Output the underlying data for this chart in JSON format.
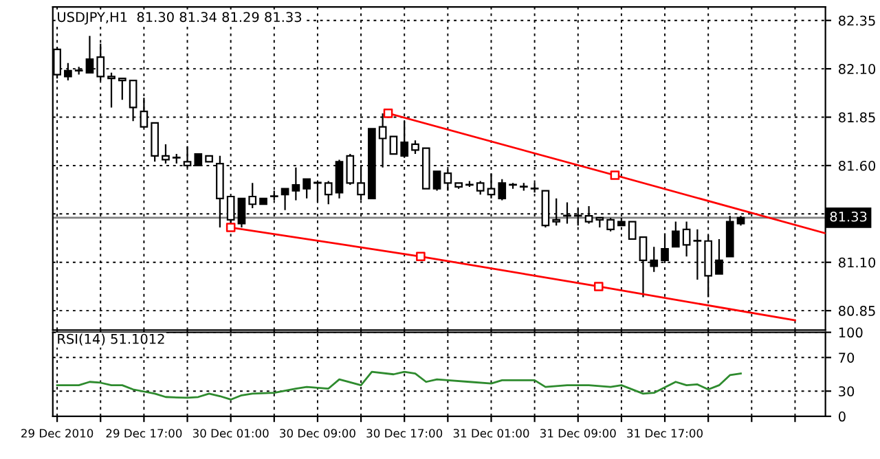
{
  "chart_data": [
    {
      "type": "candlestick",
      "title": "USDJPY,H1  81.30 81.34 81.29 81.33",
      "x": [
        "2010-12-29T09:00",
        "2010-12-29T10:00",
        "2010-12-29T11:00",
        "2010-12-29T12:00",
        "2010-12-29T13:00",
        "2010-12-29T14:00",
        "2010-12-29T15:00",
        "2010-12-29T16:00",
        "2010-12-29T17:00",
        "2010-12-29T18:00",
        "2010-12-29T19:00",
        "2010-12-29T20:00",
        "2010-12-29T21:00",
        "2010-12-29T22:00",
        "2010-12-29T23:00",
        "2010-12-30T00:00",
        "2010-12-30T01:00",
        "2010-12-30T02:00",
        "2010-12-30T03:00",
        "2010-12-30T04:00",
        "2010-12-30T05:00",
        "2010-12-30T06:00",
        "2010-12-30T07:00",
        "2010-12-30T08:00",
        "2010-12-30T09:00",
        "2010-12-30T10:00",
        "2010-12-30T11:00",
        "2010-12-30T12:00",
        "2010-12-30T13:00",
        "2010-12-30T14:00",
        "2010-12-30T15:00",
        "2010-12-30T16:00",
        "2010-12-30T17:00",
        "2010-12-30T18:00",
        "2010-12-30T19:00",
        "2010-12-30T20:00",
        "2010-12-30T21:00",
        "2010-12-30T22:00",
        "2010-12-30T23:00",
        "2010-12-31T00:00",
        "2010-12-31T01:00",
        "2010-12-31T02:00",
        "2010-12-31T03:00",
        "2010-12-31T04:00",
        "2010-12-31T05:00",
        "2010-12-31T06:00",
        "2010-12-31T07:00",
        "2010-12-31T08:00",
        "2010-12-31T09:00",
        "2010-12-31T10:00",
        "2010-12-31T11:00",
        "2010-12-31T12:00",
        "2010-12-31T13:00",
        "2010-12-31T14:00",
        "2010-12-31T15:00",
        "2010-12-31T16:00",
        "2010-12-31T17:00",
        "2010-12-31T18:00",
        "2010-12-31T19:00",
        "2010-12-31T20:00",
        "2010-12-31T21:00",
        "2010-12-31T22:00",
        "2010-12-31T23:00",
        "2011-01-01T00:00"
      ],
      "ohlc": [
        [
          82.2,
          82.21,
          82.05,
          82.07
        ],
        [
          82.06,
          82.13,
          82.04,
          82.09
        ],
        [
          82.09,
          82.11,
          82.07,
          82.09
        ],
        [
          82.08,
          82.27,
          82.08,
          82.15
        ],
        [
          82.16,
          82.23,
          82.04,
          82.06
        ],
        [
          82.06,
          82.08,
          81.9,
          82.05
        ],
        [
          82.05,
          82.05,
          81.94,
          82.04
        ],
        [
          82.04,
          82.04,
          81.83,
          81.9
        ],
        [
          81.88,
          81.95,
          81.8,
          81.8
        ],
        [
          81.82,
          81.82,
          81.62,
          81.65
        ],
        [
          81.65,
          81.71,
          81.61,
          81.63
        ],
        [
          81.64,
          81.66,
          81.61,
          81.64
        ],
        [
          81.62,
          81.7,
          81.59,
          81.6
        ],
        [
          81.6,
          81.66,
          81.6,
          81.66
        ],
        [
          81.65,
          81.65,
          81.62,
          81.62
        ],
        [
          81.61,
          81.65,
          81.28,
          81.43
        ],
        [
          81.44,
          81.44,
          81.3,
          81.32
        ],
        [
          81.3,
          81.43,
          81.28,
          81.43
        ],
        [
          81.44,
          81.51,
          81.38,
          81.4
        ],
        [
          81.4,
          81.43,
          81.4,
          81.43
        ],
        [
          81.44,
          81.47,
          81.42,
          81.44
        ],
        [
          81.45,
          81.48,
          81.37,
          81.48
        ],
        [
          81.47,
          81.59,
          81.42,
          81.5
        ],
        [
          81.48,
          81.53,
          81.43,
          81.53
        ],
        [
          81.51,
          81.51,
          81.41,
          81.51
        ],
        [
          81.51,
          81.52,
          81.4,
          81.45
        ],
        [
          81.46,
          81.63,
          81.43,
          81.62
        ],
        [
          81.65,
          81.66,
          81.5,
          81.51
        ],
        [
          81.51,
          81.6,
          81.42,
          81.45
        ],
        [
          81.43,
          81.79,
          81.43,
          81.79
        ],
        [
          81.8,
          81.87,
          81.59,
          81.74
        ],
        [
          81.75,
          81.75,
          81.66,
          81.66
        ],
        [
          81.65,
          81.83,
          81.64,
          81.72
        ],
        [
          81.71,
          81.73,
          81.66,
          81.68
        ],
        [
          81.69,
          81.69,
          81.48,
          81.48
        ],
        [
          81.48,
          81.57,
          81.47,
          81.57
        ],
        [
          81.56,
          81.58,
          81.47,
          81.51
        ],
        [
          81.51,
          81.51,
          81.48,
          81.49
        ],
        [
          81.5,
          81.52,
          81.49,
          81.5
        ],
        [
          81.51,
          81.52,
          81.45,
          81.47
        ],
        [
          81.48,
          81.56,
          81.43,
          81.45
        ],
        [
          81.43,
          81.53,
          81.42,
          81.51
        ],
        [
          81.5,
          81.51,
          81.48,
          81.5
        ],
        [
          81.49,
          81.51,
          81.47,
          81.49
        ],
        [
          81.48,
          81.51,
          81.46,
          81.48
        ],
        [
          81.47,
          81.47,
          81.28,
          81.29
        ],
        [
          81.32,
          81.43,
          81.29,
          81.31
        ],
        [
          81.34,
          81.41,
          81.3,
          81.34
        ],
        [
          81.34,
          81.38,
          81.29,
          81.34
        ],
        [
          81.34,
          81.39,
          81.3,
          81.31
        ],
        [
          81.33,
          81.33,
          81.28,
          81.32
        ],
        [
          81.32,
          81.33,
          81.26,
          81.27
        ],
        [
          81.29,
          81.33,
          81.29,
          81.31
        ],
        [
          81.31,
          81.31,
          81.22,
          81.22
        ],
        [
          81.23,
          81.23,
          80.92,
          81.11
        ],
        [
          81.08,
          81.18,
          81.05,
          81.11
        ],
        [
          81.11,
          81.25,
          81.1,
          81.17
        ],
        [
          81.18,
          81.31,
          81.18,
          81.26
        ],
        [
          81.27,
          81.31,
          81.13,
          81.19
        ],
        [
          81.21,
          81.27,
          81.01,
          81.21
        ],
        [
          81.21,
          81.24,
          80.92,
          81.03
        ],
        [
          81.04,
          81.22,
          81.04,
          81.11
        ],
        [
          81.13,
          81.34,
          81.13,
          81.31
        ],
        [
          81.3,
          81.34,
          81.29,
          81.33
        ]
      ],
      "series": [
        {
          "type": "line",
          "color": "#ff0000",
          "x": [
            "2010-12-30T15:30",
            "2010-12-31T12:24",
            "2011-01-01T07:48"
          ],
          "values": [
            81.87,
            81.55,
            81.25
          ]
        },
        {
          "type": "line",
          "color": "#ff0000",
          "x": [
            "2010-12-30T01:00",
            "2010-12-30T18:30",
            "2010-12-31T10:54",
            "2011-01-01T05:00"
          ],
          "values": [
            81.28,
            81.13,
            80.975,
            80.8
          ]
        },
        {
          "type": "scatter",
          "color": "#ff0000",
          "marker": "square",
          "x": [
            "2010-12-30T15:30",
            "2010-12-31T12:24",
            "2010-12-30T01:00",
            "2010-12-30T18:30",
            "2010-12-31T10:54"
          ],
          "values": [
            81.87,
            81.55,
            81.28,
            81.13,
            80.975
          ]
        }
      ],
      "ref_lines": [
        {
          "axis": "y",
          "value": 81.33,
          "label": "81.33",
          "color": "#808080"
        }
      ],
      "xlim": [
        "2010-12-29T08:36",
        "2011-01-01T07:48"
      ],
      "xticks": [
        {
          "value": "2010-12-29T09:00",
          "label": null
        },
        {
          "value": "2010-12-29T13:00",
          "label": null
        },
        {
          "value": "2010-12-29T17:00",
          "label": null
        },
        {
          "value": "2010-12-29T21:00",
          "label": null
        },
        {
          "value": "2010-12-30T01:00",
          "label": null
        },
        {
          "value": "2010-12-30T05:00",
          "label": null
        },
        {
          "value": "2010-12-30T09:00",
          "label": null
        },
        {
          "value": "2010-12-30T13:00",
          "label": null
        },
        {
          "value": "2010-12-30T17:00",
          "label": null
        },
        {
          "value": "2010-12-30T21:00",
          "label": null
        },
        {
          "value": "2010-12-31T01:00",
          "label": null
        },
        {
          "value": "2010-12-31T05:00",
          "label": null
        },
        {
          "value": "2010-12-31T09:00",
          "label": null
        },
        {
          "value": "2010-12-31T13:00",
          "label": null
        },
        {
          "value": "2010-12-31T17:00",
          "label": null
        },
        {
          "value": "2010-12-31T21:00",
          "label": null
        },
        {
          "value": "2011-01-01T01:00",
          "label": null
        },
        {
          "value": "2011-01-01T05:00",
          "label": null
        }
      ],
      "ylim": [
        80.75,
        82.42
      ],
      "yticks": [
        80.85,
        {
          "value": 81.1,
          "label": "81.10"
        },
        {
          "value": 81.35,
          "label": null
        },
        {
          "value": 81.6,
          "label": "81.60"
        },
        81.85,
        {
          "value": 82.1,
          "label": "82.10"
        },
        82.35
      ],
      "grid": true,
      "tick_labels": "y",
      "legend": false
    },
    {
      "type": "line",
      "title": "RSI(14) 51.1012",
      "series": [
        {
          "color": "#2e8b2e",
          "x": [
            "2010-12-29T09:00",
            "2010-12-29T11:00",
            "2010-12-29T12:00",
            "2010-12-29T13:00",
            "2010-12-29T14:00",
            "2010-12-29T15:00",
            "2010-12-29T16:00",
            "2010-12-29T18:00",
            "2010-12-29T19:00",
            "2010-12-29T21:00",
            "2010-12-29T22:00",
            "2010-12-29T23:00",
            "2010-12-30T00:00",
            "2010-12-30T01:00",
            "2010-12-30T02:00",
            "2010-12-30T03:00",
            "2010-12-30T05:00",
            "2010-12-30T07:00",
            "2010-12-30T08:00",
            "2010-12-30T10:00",
            "2010-12-30T11:00",
            "2010-12-30T13:00",
            "2010-12-30T14:00",
            "2010-12-30T16:00",
            "2010-12-30T17:00",
            "2010-12-30T18:00",
            "2010-12-30T19:00",
            "2010-12-30T20:00",
            "2010-12-30T21:00",
            "2010-12-30T23:00",
            "2010-12-31T01:00",
            "2010-12-31T02:00",
            "2010-12-31T05:00",
            "2010-12-31T06:00",
            "2010-12-31T08:00",
            "2010-12-31T10:00",
            "2010-12-31T12:00",
            "2010-12-31T13:00",
            "2010-12-31T15:00",
            "2010-12-31T16:00",
            "2010-12-31T18:00",
            "2010-12-31T19:00",
            "2010-12-31T20:00",
            "2010-12-31T21:00",
            "2010-12-31T22:00",
            "2010-12-31T23:00",
            "2011-01-01T00:00"
          ],
          "values": [
            37,
            37,
            41,
            40,
            37,
            37,
            32,
            27,
            23,
            22,
            23,
            27,
            24,
            20,
            25,
            27,
            28,
            33,
            35,
            33,
            44,
            37,
            53,
            50,
            53,
            51,
            41,
            44,
            43,
            41,
            39,
            43,
            43,
            35,
            37,
            37,
            35,
            37,
            27,
            28,
            41,
            37,
            38,
            32,
            37,
            49,
            51
          ]
        }
      ],
      "xlim": [
        "2010-12-29T08:36",
        "2011-01-01T07:48"
      ],
      "xticks": [
        {
          "value": "2010-12-29T09:00",
          "label": "29 Dec 2010"
        },
        {
          "value": "2010-12-29T13:00",
          "label": null
        },
        {
          "value": "2010-12-29T17:00",
          "label": "29 Dec 17:00"
        },
        {
          "value": "2010-12-29T21:00",
          "label": null
        },
        {
          "value": "2010-12-30T01:00",
          "label": "30 Dec 01:00"
        },
        {
          "value": "2010-12-30T05:00",
          "label": null
        },
        {
          "value": "2010-12-30T09:00",
          "label": "30 Dec 09:00"
        },
        {
          "value": "2010-12-30T13:00",
          "label": null
        },
        {
          "value": "2010-12-30T17:00",
          "label": "30 Dec 17:00"
        },
        {
          "value": "2010-12-30T21:00",
          "label": null
        },
        {
          "value": "2010-12-31T01:00",
          "label": "31 Dec 01:00"
        },
        {
          "value": "2010-12-31T05:00",
          "label": null
        },
        {
          "value": "2010-12-31T09:00",
          "label": "31 Dec 09:00"
        },
        {
          "value": "2010-12-31T13:00",
          "label": null
        },
        {
          "value": "2010-12-31T17:00",
          "label": "31 Dec 17:00"
        },
        {
          "value": "2010-12-31T21:00",
          "label": null
        },
        {
          "value": "2011-01-01T01:00",
          "label": null
        },
        {
          "value": "2011-01-01T05:00",
          "label": null
        }
      ],
      "ylim": [
        0,
        100
      ],
      "yticks": [
        0,
        30,
        70,
        100
      ],
      "grid": true,
      "legend": false
    }
  ]
}
